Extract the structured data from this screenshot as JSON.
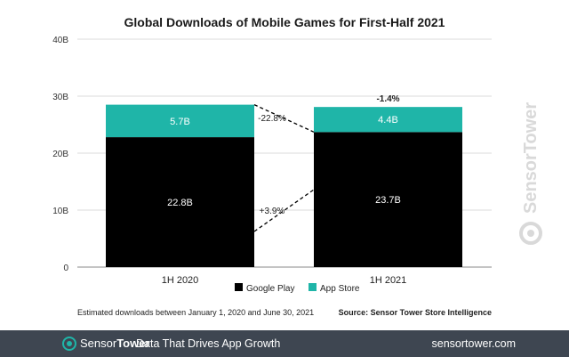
{
  "chart_data": {
    "type": "bar",
    "stacked": true,
    "title": "Global Downloads of Mobile Games for First-Half 2021",
    "categories": [
      "1H 2020",
      "1H 2021"
    ],
    "series": [
      {
        "name": "Google Play",
        "values": [
          22.8,
          23.7
        ],
        "labels": [
          "22.8B",
          "23.7B"
        ],
        "color": "#000000"
      },
      {
        "name": "App Store",
        "values": [
          5.7,
          4.4
        ],
        "labels": [
          "5.7B",
          "4.4B"
        ],
        "color": "#1fb5a8"
      }
    ],
    "yticks": [
      "0",
      "10B",
      "20B",
      "30B",
      "40B"
    ],
    "ylim": [
      0,
      40
    ],
    "grid": true,
    "legend": "bottom-center",
    "annotations": {
      "total_change": "-1.4%",
      "app_store_change": "-22.8%",
      "google_play_change": "+3.9%"
    }
  },
  "notes": {
    "left": "Estimated downloads between January 1, 2020 and June 30, 2021",
    "right": "Source: Sensor Tower Store Intelligence"
  },
  "footer": {
    "brand_sensor": "Sensor",
    "brand_tower": "Tower",
    "tagline": "Data That Drives App Growth",
    "site": "sensortower.com"
  },
  "watermark": "SensorTower"
}
